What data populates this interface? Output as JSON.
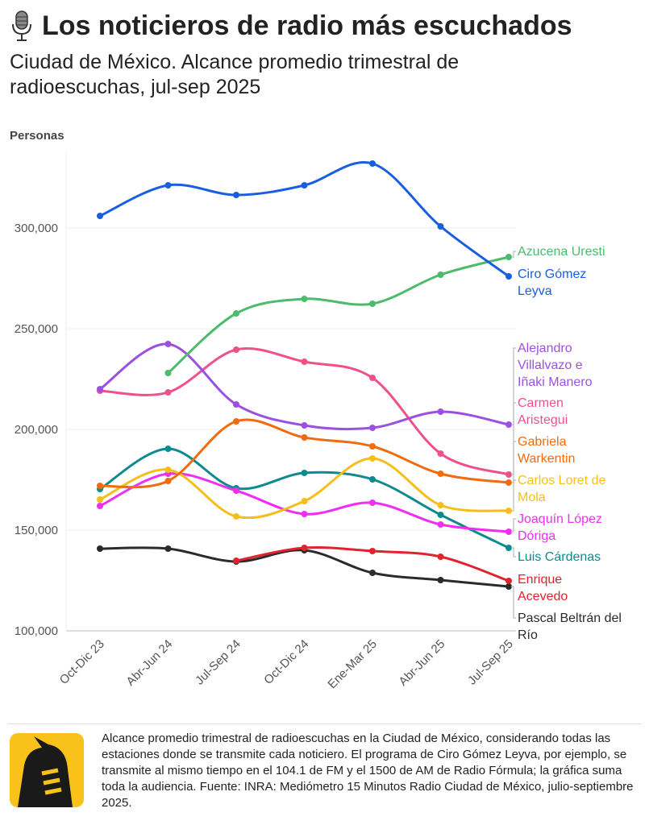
{
  "title": "Los noticieros de radio más escuchados",
  "title_icon": "microphone-icon",
  "subtitle": "Ciudad de México. Alcance promedio trimestral de radioescuchas, jul-sep 2025",
  "note": "Alcance promedio trimestral de radioescuchas en la Ciudad de México, considerando todas las estaciones donde se transmite cada noticiero. El programa de Ciro Gómez Leyva, por ejemplo, se transmite al mismo tiempo en el 104.1 de FM y el 1500 de AM de Radio Fórmula; la gráfica suma toda la audiencia. Fuente: INRA: Mediómetro 15 Minutos Radio Ciudad de México, julio-septiembre 2025.",
  "logo_icon": "publisher-logo",
  "chart_data": {
    "type": "line",
    "ylabel": "Personas",
    "ylim": [
      100000,
      335000
    ],
    "yticks": [
      100000,
      150000,
      200000,
      250000,
      300000
    ],
    "ytick_labels": [
      "100,000",
      "150,000",
      "200,000",
      "250,000",
      "300,000"
    ],
    "grid": "horizontal",
    "legend": "direct labels at right",
    "categories": [
      "Oct-Dic 23",
      "Abr-Jun 24",
      "Jul-Sep 24",
      "Oct-Dic 24",
      "Ene-Mar 25",
      "Abr-Jun 25",
      "Jul-Sep 25"
    ],
    "series": [
      {
        "name": "Ciro Gómez Leyva",
        "color": "#1a5ee0",
        "values": [
          306000,
          321200,
          316400,
          321200,
          332000,
          300800,
          276000
        ]
      },
      {
        "name": "Azucena Uresti",
        "color": "#4cbb6c",
        "values": [
          null,
          228000,
          257600,
          264800,
          262400,
          276800,
          285600
        ]
      },
      {
        "name": "Alejandro Villalvazo e Iñaki Manero",
        "color": "#9b51e0",
        "values": [
          220000,
          242400,
          212400,
          202000,
          200800,
          208800,
          202400
        ]
      },
      {
        "name": "Carmen Aristegui",
        "color": "#f0508a",
        "values": [
          219200,
          218400,
          239600,
          233600,
          225600,
          188000,
          177600
        ]
      },
      {
        "name": "Gabriela Warkentin",
        "color": "#f26b0f",
        "values": [
          172000,
          174400,
          204000,
          196000,
          191600,
          178000,
          173600
        ]
      },
      {
        "name": "Carlos Loret de Mola",
        "color": "#f5be1a",
        "values": [
          165200,
          180000,
          156800,
          164400,
          185600,
          162400,
          159600
        ]
      },
      {
        "name": "Joaquín López Dóriga",
        "color": "#f02ef0",
        "values": [
          162000,
          178000,
          169600,
          158000,
          163600,
          152800,
          149200
        ]
      },
      {
        "name": "Luis Cárdenas",
        "color": "#0f8a8f",
        "values": [
          170400,
          190400,
          170800,
          178400,
          175200,
          157600,
          141200
        ]
      },
      {
        "name": "Enrique Acevedo",
        "color": "#e0242f",
        "values": [
          null,
          null,
          134800,
          141200,
          139600,
          136800,
          124800
        ]
      },
      {
        "name": "Pascal Beltrán del Río",
        "color": "#2b2b2b",
        "values": [
          140800,
          140800,
          134400,
          140000,
          128800,
          125200,
          122000
        ]
      }
    ]
  }
}
